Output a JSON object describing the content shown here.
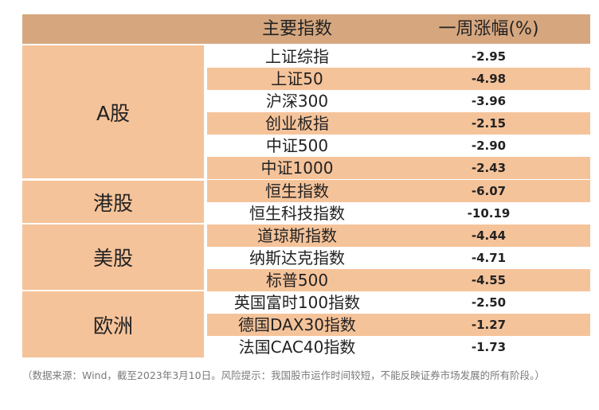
{
  "header": {
    "name_col": "主要指数",
    "value_col": "一周涨幅(%)"
  },
  "regions": [
    {
      "label": "A股",
      "rows": [
        {
          "name": "上证综指",
          "value": "-2.95"
        },
        {
          "name": "上证50",
          "value": "-4.98"
        },
        {
          "name": "沪深300",
          "value": "-3.96"
        },
        {
          "name": "创业板指",
          "value": "-2.15"
        },
        {
          "name": "中证500",
          "value": "-2.90"
        },
        {
          "name": "中证1000",
          "value": "-2.43"
        }
      ]
    },
    {
      "label": "港股",
      "rows": [
        {
          "name": "恒生指数",
          "value": "-6.07"
        },
        {
          "name": "恒生科技指数",
          "value": "-10.19"
        }
      ]
    },
    {
      "label": "美股",
      "rows": [
        {
          "name": "道琼斯指数",
          "value": "-4.44"
        },
        {
          "name": "纳斯达克指数",
          "value": "-4.71"
        },
        {
          "name": "标普500",
          "value": "-4.55"
        }
      ]
    },
    {
      "label": "欧洲",
      "rows": [
        {
          "name": "英国富时100指数",
          "value": "-2.50"
        },
        {
          "name": "德国DAX30指数",
          "value": "-1.27"
        },
        {
          "name": "法国CAC40指数",
          "value": "-1.73"
        }
      ]
    }
  ],
  "note": "（数据来源：Wind，截至2023年3月10日。风险提示：我国股市运作时间较短，不能反映证券市场发展的所有阶段。）",
  "colors": {
    "header_bg": "#d6a77f",
    "cell_bg": "#f5c39a",
    "alt_bg": "#ffffff"
  }
}
